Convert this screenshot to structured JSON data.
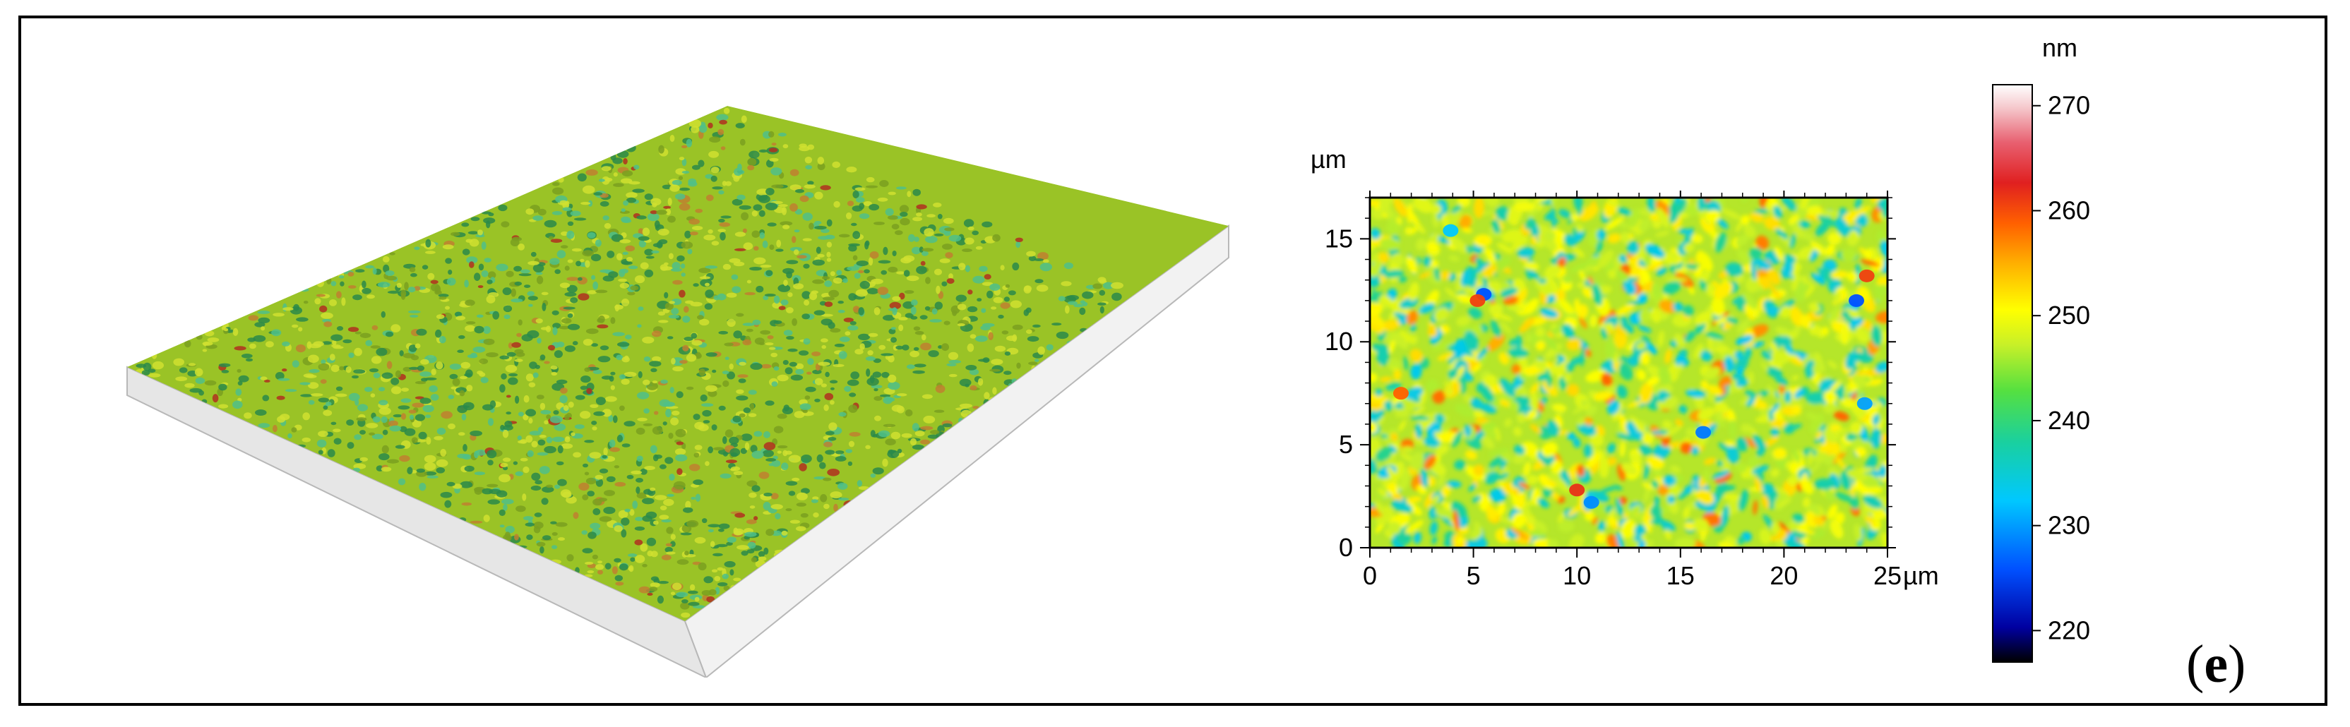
{
  "chart_data": [
    {
      "type": "surface",
      "series": [
        {
          "x_extent_um": [
            0,
            25
          ],
          "y_extent_um": [
            0,
            17
          ]
        }
      ]
    },
    {
      "type": "heatmap",
      "ylabel": "µm",
      "xunit": "µm",
      "xlim": [
        0,
        25
      ],
      "ylim": [
        0,
        17
      ],
      "xticks": [
        "0",
        "5",
        "10",
        "15",
        "20",
        "25"
      ],
      "yticks": [
        "0",
        "5",
        "10",
        "15"
      ],
      "value_range_nm": [
        217,
        272
      ],
      "typical_value_nm": 247,
      "hotspots": [
        {
          "x": 5.5,
          "y": 12.3,
          "value": 226
        },
        {
          "x": 5.2,
          "y": 12.0,
          "value": 261
        },
        {
          "x": 23.5,
          "y": 12.0,
          "value": 226
        },
        {
          "x": 24.0,
          "y": 13.2,
          "value": 261
        },
        {
          "x": 10.0,
          "y": 2.8,
          "value": 262
        },
        {
          "x": 10.7,
          "y": 2.2,
          "value": 229
        },
        {
          "x": 16.1,
          "y": 5.6,
          "value": 228
        },
        {
          "x": 3.9,
          "y": 15.4,
          "value": 232
        },
        {
          "x": 1.5,
          "y": 7.5,
          "value": 259
        },
        {
          "x": 23.9,
          "y": 7.0,
          "value": 230
        }
      ]
    },
    {
      "type": "colorbar",
      "unit": "nm",
      "range": [
        217,
        272
      ],
      "ticks": [
        "220",
        "230",
        "240",
        "250",
        "260",
        "270"
      ]
    }
  ],
  "panel_label": {
    "open": "(",
    "letter": "e",
    "close": ")"
  }
}
